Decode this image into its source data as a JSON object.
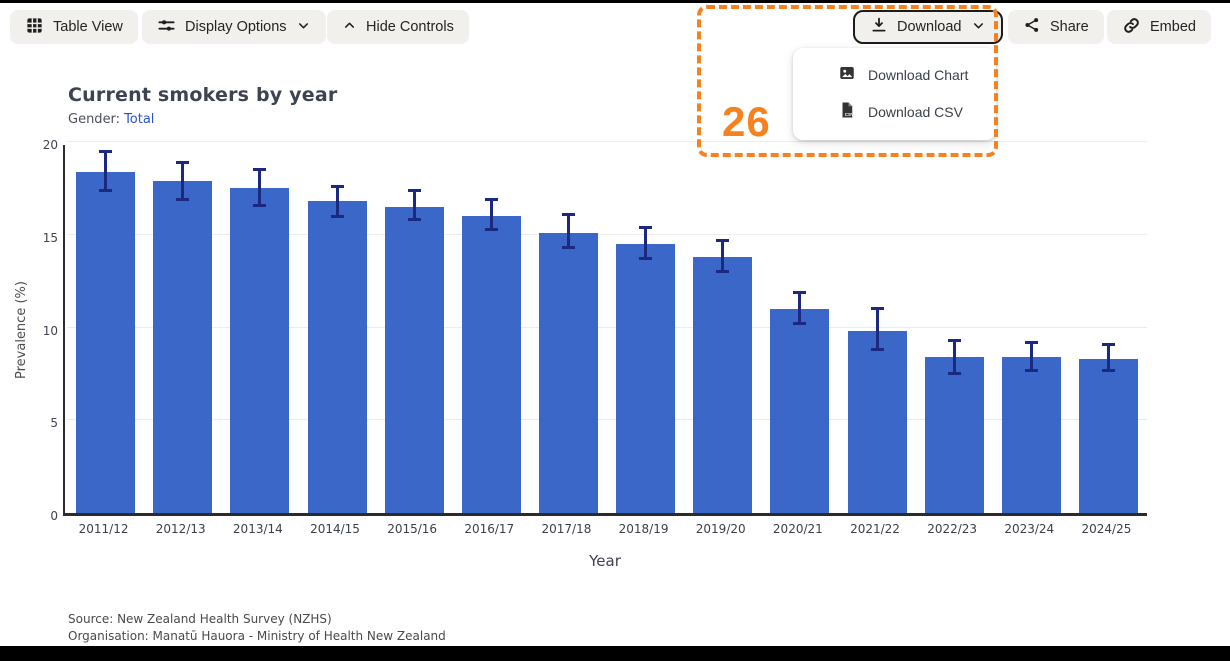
{
  "toolbar": {
    "table_view": "Table View",
    "display_options": "Display Options",
    "hide_controls": "Hide Controls",
    "download": "Download",
    "share": "Share",
    "embed": "Embed"
  },
  "download_menu": {
    "items": [
      {
        "label": "Download Chart",
        "icon": "image-icon"
      },
      {
        "label": "Download CSV",
        "icon": "file-csv-icon"
      }
    ]
  },
  "annotation": {
    "number": "26",
    "color": "#F5821F"
  },
  "chart": {
    "title": "Current smokers by year",
    "gender_label": "Gender:",
    "gender_value": "Total"
  },
  "chart_data": {
    "type": "bar",
    "title": "Current smokers by year",
    "xlabel": "Year",
    "ylabel": "Prevalence (%)",
    "ylim": [
      0,
      20
    ],
    "yticks": [
      0,
      5,
      10,
      15,
      20
    ],
    "grid": true,
    "legend": "none",
    "categories": [
      "2011/12",
      "2012/13",
      "2013/14",
      "2014/15",
      "2015/16",
      "2016/17",
      "2017/18",
      "2018/19",
      "2019/20",
      "2020/21",
      "2021/22",
      "2022/23",
      "2023/24",
      "2024/25"
    ],
    "values": [
      18.4,
      17.9,
      17.5,
      16.8,
      16.5,
      16.0,
      15.1,
      14.5,
      13.8,
      11.0,
      9.8,
      8.4,
      8.4,
      8.3
    ],
    "error_high": [
      19.5,
      18.9,
      18.5,
      17.6,
      17.4,
      16.9,
      16.1,
      15.4,
      14.7,
      11.9,
      11.0,
      9.3,
      9.2,
      9.1
    ],
    "error_low": [
      17.4,
      16.9,
      16.6,
      16.0,
      15.8,
      15.3,
      14.3,
      13.7,
      13.0,
      10.2,
      8.8,
      7.5,
      7.7,
      7.7
    ],
    "bar_color": "#3B68C8",
    "error_color": "#1B2A80"
  },
  "footer": {
    "source": "Source: New Zealand Health Survey (NZHS)",
    "organisation": "Organisation: Manatū Hauora - Ministry of Health New Zealand"
  },
  "colors": {
    "accent_orange": "#F5821F",
    "link_blue": "#2A52CE",
    "button_bg": "#F2F0ED",
    "bar_blue": "#3B68C8",
    "error_navy": "#1B2A80"
  }
}
